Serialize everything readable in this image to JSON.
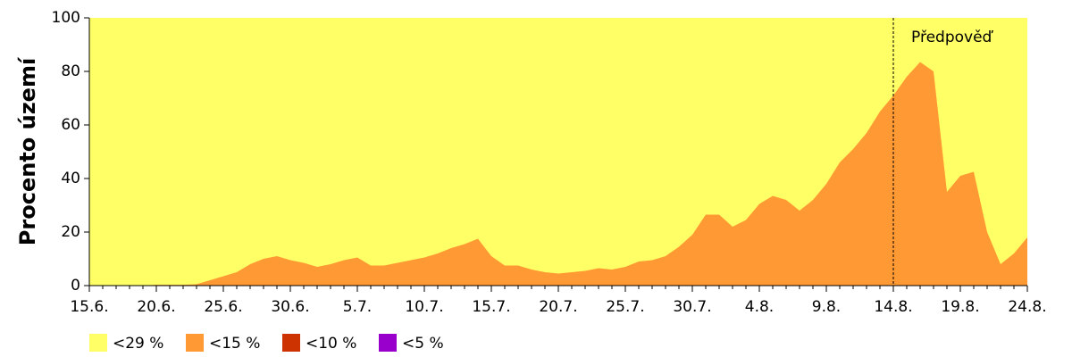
{
  "chart_data": {
    "type": "area",
    "y_label": "Procento území",
    "categories": [
      "15.6.",
      null,
      null,
      null,
      null,
      "20.6.",
      null,
      null,
      null,
      null,
      "25.6.",
      null,
      null,
      null,
      null,
      "30.6.",
      null,
      null,
      null,
      null,
      "5.7.",
      null,
      null,
      null,
      null,
      "10.7.",
      null,
      null,
      null,
      null,
      "15.7.",
      null,
      null,
      null,
      null,
      "20.7.",
      null,
      null,
      null,
      null,
      "25.7.",
      null,
      null,
      null,
      null,
      "30.7.",
      null,
      null,
      null,
      null,
      "4.8.",
      null,
      null,
      null,
      null,
      "9.8.",
      null,
      null,
      null,
      null,
      "14.8.",
      null,
      null,
      null,
      null,
      "19.8.",
      null,
      null,
      null,
      null,
      "24.8."
    ],
    "series": [
      {
        "name": "<29 %",
        "color": "#ffff66",
        "values": [
          100,
          100,
          100,
          100,
          100,
          100,
          100,
          100,
          100,
          100,
          100,
          100,
          100,
          100,
          100,
          100,
          100,
          100,
          100,
          100,
          100,
          100,
          100,
          100,
          100,
          100,
          100,
          100,
          100,
          100,
          100,
          100,
          100,
          100,
          100,
          100,
          100,
          100,
          100,
          100,
          100,
          100,
          100,
          100,
          100,
          100,
          100,
          100,
          100,
          100,
          100,
          100,
          100,
          100,
          100,
          100,
          100,
          100,
          100,
          100,
          100,
          100,
          100,
          100,
          100,
          100,
          100,
          100,
          100,
          100,
          100
        ]
      },
      {
        "name": "<15 %",
        "color": "#ff9933",
        "values": [
          0,
          0,
          0,
          0,
          0,
          0.3,
          0.3,
          0.3,
          0.5,
          2,
          3.5,
          5,
          8,
          10,
          11,
          9.5,
          8.5,
          7,
          8,
          9.5,
          10.5,
          7.5,
          7.5,
          8.5,
          9.5,
          10.5,
          12,
          14,
          15.5,
          17.5,
          11,
          7.5,
          7.5,
          6,
          5,
          4.5,
          5,
          5.5,
          6.5,
          6,
          7,
          9,
          9.5,
          11,
          14.5,
          19,
          26.5,
          26.5,
          22,
          24.5,
          30.5,
          33.5,
          32,
          28,
          32,
          38,
          46,
          51,
          57,
          65,
          71,
          78,
          83.5,
          80,
          35,
          41,
          42.5,
          20,
          8,
          12,
          18
        ]
      },
      {
        "name": "<10 %",
        "color": "#cc3300",
        "values": [
          0,
          0,
          0,
          0,
          0,
          0,
          0,
          0,
          0,
          0,
          0,
          0,
          0,
          0,
          0,
          0,
          0,
          0,
          0,
          0,
          0,
          0,
          0,
          0,
          0,
          0,
          0,
          0,
          0,
          0,
          0,
          0,
          0,
          0,
          0,
          0,
          0,
          0,
          0,
          0,
          0,
          0,
          0,
          0,
          0,
          0,
          0,
          0,
          0,
          0,
          0,
          0,
          0,
          0,
          0,
          0,
          0,
          0,
          0,
          0,
          0,
          0,
          0,
          0,
          0,
          0,
          0,
          0,
          0,
          0,
          0
        ]
      },
      {
        "name": "<5 %",
        "color": "#9900cc",
        "values": [
          0,
          0,
          0,
          0,
          0,
          0,
          0,
          0,
          0,
          0,
          0,
          0,
          0,
          0,
          0,
          0,
          0,
          0,
          0,
          0,
          0,
          0,
          0,
          0,
          0,
          0,
          0,
          0,
          0,
          0,
          0,
          0,
          0,
          0,
          0,
          0,
          0,
          0,
          0,
          0,
          0,
          0,
          0,
          0,
          0,
          0,
          0,
          0,
          0,
          0,
          0,
          0,
          0,
          0,
          0,
          0,
          0,
          0,
          0,
          0,
          0,
          0,
          0,
          0,
          0,
          0,
          0,
          0,
          0,
          0,
          0
        ]
      }
    ],
    "ylim": [
      0,
      100
    ],
    "yticks": [
      0,
      20,
      40,
      60,
      80,
      100
    ],
    "forecast": {
      "label": "Předpověď",
      "x": "14.8."
    }
  }
}
